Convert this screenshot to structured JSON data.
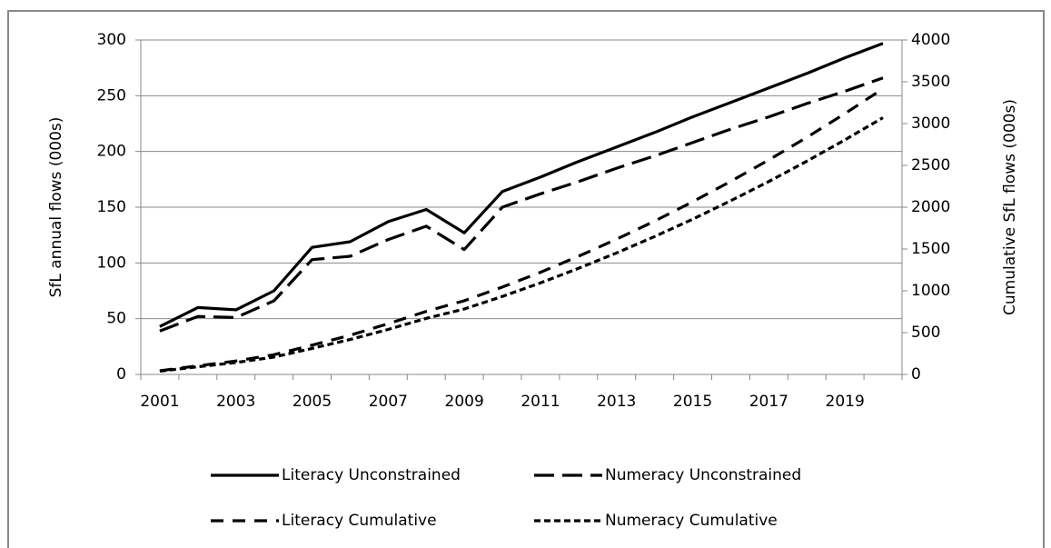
{
  "chart_data": {
    "type": "line",
    "categories": [
      "2001",
      null,
      "2003",
      null,
      "2005",
      null,
      "2007",
      null,
      "2009",
      null,
      "2011",
      null,
      "2013",
      null,
      "2015",
      null,
      "2017",
      null,
      "2019",
      null
    ],
    "ylabel": "SfL annual flows (000s)",
    "y2label": "Cumulative SfL flows (000s)",
    "ylim": [
      0,
      300
    ],
    "yticks": [
      0,
      50,
      100,
      150,
      200,
      250,
      300
    ],
    "y2lim": [
      0,
      4000
    ],
    "y2ticks": [
      0,
      500,
      1000,
      1500,
      2000,
      2500,
      3000,
      3500,
      4000
    ],
    "grid": true,
    "legend": "bottom",
    "series": [
      {
        "name": "Literacy Unconstrained",
        "color": "#000000",
        "dash": "solid",
        "values": [
          43,
          60,
          58,
          75,
          114,
          119,
          137,
          148,
          127,
          164,
          177,
          191,
          204,
          217,
          231,
          244,
          257,
          270,
          284,
          297
        ]
      },
      {
        "name": "Numeracy Unconstrained",
        "color": "#000000",
        "dash": "long",
        "values": [
          39,
          52,
          51,
          66,
          103,
          106,
          121,
          133,
          112,
          150,
          162,
          173,
          185,
          196,
          208,
          220,
          231,
          243,
          254,
          266
        ]
      },
      {
        "name": "Literacy Cumulative",
        "color": "#000000",
        "dash": "medium",
        "axis": "y2",
        "values": [
          43,
          103,
          161,
          236,
          350,
          469,
          606,
          754,
          881,
          1045,
          1222,
          1413,
          1617,
          1834,
          2065,
          2309,
          2566,
          2836,
          3120,
          3417
        ]
      },
      {
        "name": "Numeracy Cumulative",
        "color": "#000000",
        "dash": "short",
        "axis": "y2",
        "values": [
          39,
          91,
          142,
          208,
          311,
          417,
          538,
          671,
          783,
          933,
          1095,
          1268,
          1453,
          1649,
          1857,
          2077,
          2308,
          2551,
          2805,
          3071
        ]
      }
    ]
  }
}
